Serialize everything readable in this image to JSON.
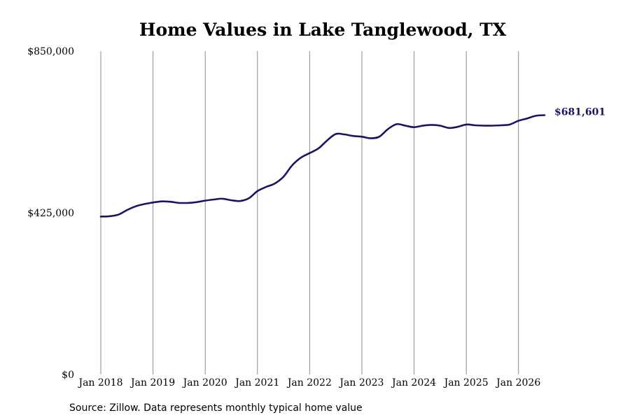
{
  "chart_data": {
    "type": "line",
    "title": "Home Values in Lake Tanglewood, TX",
    "xlabel": "",
    "ylabel": "",
    "ylim": [
      0,
      850000
    ],
    "yticks": [
      0,
      425000,
      850000
    ],
    "ytick_labels": [
      "$0",
      "$425,000",
      "$850,000"
    ],
    "xticks": [
      "2018-01",
      "2019-01",
      "2020-01",
      "2021-01",
      "2022-01",
      "2023-01",
      "2024-01",
      "2025-01",
      "2026-01"
    ],
    "xtick_labels": [
      "Jan 2018",
      "Jan 2019",
      "Jan 2020",
      "Jan 2021",
      "Jan 2022",
      "Jan 2023",
      "Jan 2024",
      "Jan 2025",
      "Jan 2026"
    ],
    "xlim": [
      "2018-01",
      "2026-07"
    ],
    "grid": "vertical",
    "end_label": "$681,601",
    "series": [
      {
        "color": "#1a1464",
        "points": [
          [
            "2018-01",
            415000
          ],
          [
            "2018-03",
            416000
          ],
          [
            "2018-05",
            420000
          ],
          [
            "2018-07",
            432000
          ],
          [
            "2018-09",
            442000
          ],
          [
            "2018-11",
            448000
          ],
          [
            "2019-01",
            452000
          ],
          [
            "2019-03",
            455000
          ],
          [
            "2019-05",
            454000
          ],
          [
            "2019-07",
            451000
          ],
          [
            "2019-09",
            451000
          ],
          [
            "2019-11",
            453000
          ],
          [
            "2020-01",
            457000
          ],
          [
            "2020-03",
            460000
          ],
          [
            "2020-05",
            462000
          ],
          [
            "2020-07",
            458000
          ],
          [
            "2020-09",
            456000
          ],
          [
            "2020-11",
            463000
          ],
          [
            "2021-01",
            482000
          ],
          [
            "2021-03",
            493000
          ],
          [
            "2021-05",
            502000
          ],
          [
            "2021-07",
            520000
          ],
          [
            "2021-09",
            550000
          ],
          [
            "2021-11",
            570000
          ],
          [
            "2022-01",
            582000
          ],
          [
            "2022-03",
            594000
          ],
          [
            "2022-05",
            615000
          ],
          [
            "2022-07",
            632000
          ],
          [
            "2022-09",
            631000
          ],
          [
            "2022-11",
            627000
          ],
          [
            "2023-01",
            625000
          ],
          [
            "2023-03",
            621000
          ],
          [
            "2023-05",
            625000
          ],
          [
            "2023-07",
            645000
          ],
          [
            "2023-09",
            658000
          ],
          [
            "2023-11",
            654000
          ],
          [
            "2024-01",
            650000
          ],
          [
            "2024-03",
            654000
          ],
          [
            "2024-05",
            656000
          ],
          [
            "2024-07",
            654000
          ],
          [
            "2024-09",
            648000
          ],
          [
            "2024-11",
            651000
          ],
          [
            "2025-01",
            657000
          ],
          [
            "2025-03",
            655000
          ],
          [
            "2025-05",
            654000
          ],
          [
            "2025-07",
            654000
          ],
          [
            "2025-09",
            655000
          ],
          [
            "2025-11",
            657000
          ],
          [
            "2026-01",
            667000
          ],
          [
            "2026-03",
            673000
          ],
          [
            "2026-05",
            680000
          ],
          [
            "2026-07",
            681601
          ]
        ]
      }
    ]
  },
  "source_text": "Source: Zillow. Data represents monthly typical home value"
}
